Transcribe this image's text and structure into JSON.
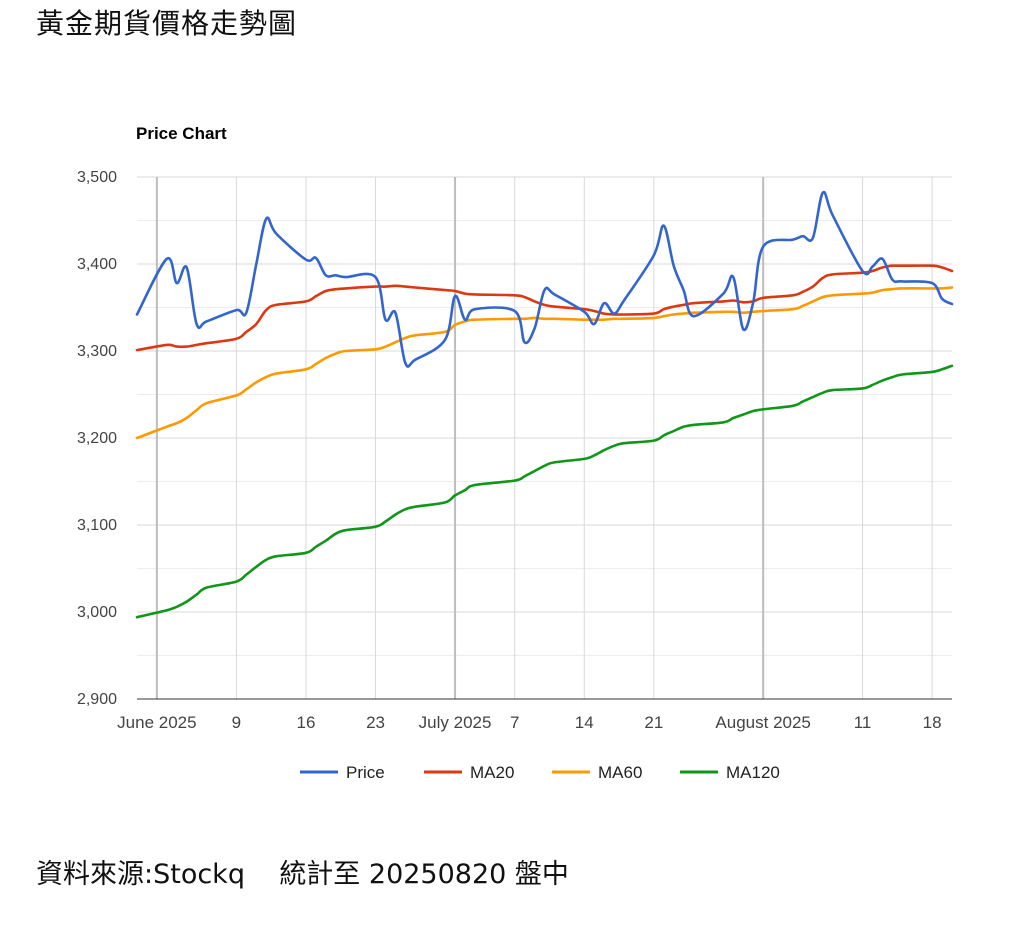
{
  "page": {
    "title": "黃金期貨價格走勢圖",
    "footer_source": "資料來源:Stockq",
    "footer_stat": "統計至 20250820 盤中"
  },
  "colors": {
    "price": "#3366cc",
    "ma20": "#dc3912",
    "ma60": "#ff9900",
    "ma120": "#109618",
    "grid": "#d9d9d9",
    "major_grid": "#bdbdbd",
    "axis_text": "#444444"
  },
  "chart_data": {
    "type": "line",
    "title": "Price Chart",
    "xlabel": "",
    "ylabel": "",
    "ylim": [
      2900,
      3500
    ],
    "yticks": [
      2900,
      3000,
      3100,
      3200,
      3300,
      3400,
      3500
    ],
    "ytick_labels": [
      "2,900",
      "3,000",
      "3,100",
      "3,200",
      "3,300",
      "3,400",
      "3,500"
    ],
    "xlim": [
      "2025-05-30",
      "2025-08-20"
    ],
    "xticks": [
      {
        "date": "2025-06-01",
        "label": "June 2025",
        "major": true
      },
      {
        "date": "2025-06-09",
        "label": "9",
        "major": false
      },
      {
        "date": "2025-06-16",
        "label": "16",
        "major": false
      },
      {
        "date": "2025-06-23",
        "label": "23",
        "major": false
      },
      {
        "date": "2025-07-01",
        "label": "July 2025",
        "major": true
      },
      {
        "date": "2025-07-07",
        "label": "7",
        "major": false
      },
      {
        "date": "2025-07-14",
        "label": "14",
        "major": false
      },
      {
        "date": "2025-07-21",
        "label": "21",
        "major": false
      },
      {
        "date": "2025-08-01",
        "label": "August 2025",
        "major": true
      },
      {
        "date": "2025-08-11",
        "label": "11",
        "major": false
      },
      {
        "date": "2025-08-18",
        "label": "18",
        "major": false
      }
    ],
    "legend_position": "bottom",
    "grid": true,
    "x": [
      "2025-05-30",
      "2025-06-02",
      "2025-06-03",
      "2025-06-04",
      "2025-06-05",
      "2025-06-06",
      "2025-06-09",
      "2025-06-10",
      "2025-06-11",
      "2025-06-12",
      "2025-06-13",
      "2025-06-16",
      "2025-06-17",
      "2025-06-18",
      "2025-06-19",
      "2025-06-20",
      "2025-06-23",
      "2025-06-24",
      "2025-06-25",
      "2025-06-26",
      "2025-06-27",
      "2025-06-30",
      "2025-07-01",
      "2025-07-02",
      "2025-07-03",
      "2025-07-07",
      "2025-07-08",
      "2025-07-09",
      "2025-07-10",
      "2025-07-11",
      "2025-07-14",
      "2025-07-15",
      "2025-07-16",
      "2025-07-17",
      "2025-07-18",
      "2025-07-21",
      "2025-07-22",
      "2025-07-23",
      "2025-07-24",
      "2025-07-25",
      "2025-07-28",
      "2025-07-29",
      "2025-07-30",
      "2025-07-31",
      "2025-08-01",
      "2025-08-04",
      "2025-08-05",
      "2025-08-06",
      "2025-08-07",
      "2025-08-08",
      "2025-08-11",
      "2025-08-12",
      "2025-08-13",
      "2025-08-14",
      "2025-08-15",
      "2025-08-18",
      "2025-08-19",
      "2025-08-20"
    ],
    "series": [
      {
        "name": "Price",
        "values": [
          3342,
          3406,
          3378,
          3396,
          3331,
          3334,
          3347,
          3344,
          3400,
          3452,
          3435,
          3405,
          3407,
          3387,
          3387,
          3385,
          3385,
          3336,
          3344,
          3286,
          3290,
          3313,
          3363,
          3336,
          3348,
          3346,
          3310,
          3326,
          3370,
          3365,
          3345,
          3331,
          3355,
          3343,
          3358,
          3410,
          3444,
          3398,
          3370,
          3340,
          3366,
          3385,
          3325,
          3356,
          3420,
          3428,
          3432,
          3430,
          3482,
          3456,
          3392,
          3397,
          3406,
          3382,
          3380,
          3378,
          3360,
          3354
        ]
      },
      {
        "name": "MA20",
        "values": [
          3301,
          3307,
          3305,
          3305,
          3307,
          3309,
          3314,
          3322,
          3331,
          3347,
          3353,
          3357,
          3363,
          3369,
          3371,
          3372,
          3374,
          3374,
          3375,
          3374,
          3373,
          3370,
          3369,
          3366,
          3365,
          3364,
          3362,
          3357,
          3353,
          3351,
          3348,
          3346,
          3343,
          3342,
          3342,
          3343,
          3348,
          3351,
          3353,
          3355,
          3357,
          3358,
          3356,
          3357,
          3361,
          3364,
          3368,
          3374,
          3384,
          3388,
          3390,
          3392,
          3396,
          3398,
          3398,
          3398,
          3396,
          3392
        ]
      },
      {
        "name": "MA60",
        "values": [
          3200,
          3213,
          3217,
          3223,
          3232,
          3240,
          3249,
          3256,
          3264,
          3270,
          3274,
          3279,
          3285,
          3292,
          3297,
          3300,
          3302,
          3305,
          3310,
          3315,
          3318,
          3322,
          3330,
          3334,
          3336,
          3337,
          3337,
          3338,
          3337,
          3337,
          3336,
          3336,
          3336,
          3337,
          3337,
          3338,
          3340,
          3342,
          3343,
          3344,
          3345,
          3345,
          3344,
          3345,
          3346,
          3348,
          3352,
          3357,
          3362,
          3364,
          3366,
          3367,
          3370,
          3371,
          3372,
          3372,
          3372,
          3373
        ]
      },
      {
        "name": "MA120",
        "values": [
          2994,
          3002,
          3006,
          3012,
          3020,
          3028,
          3035,
          3043,
          3052,
          3060,
          3064,
          3068,
          3075,
          3082,
          3090,
          3094,
          3098,
          3104,
          3112,
          3118,
          3121,
          3126,
          3134,
          3140,
          3146,
          3151,
          3156,
          3162,
          3168,
          3172,
          3176,
          3180,
          3186,
          3191,
          3194,
          3197,
          3203,
          3208,
          3213,
          3215,
          3218,
          3223,
          3227,
          3231,
          3233,
          3237,
          3242,
          3247,
          3252,
          3255,
          3257,
          3261,
          3266,
          3270,
          3273,
          3276,
          3279,
          3283
        ]
      }
    ]
  }
}
